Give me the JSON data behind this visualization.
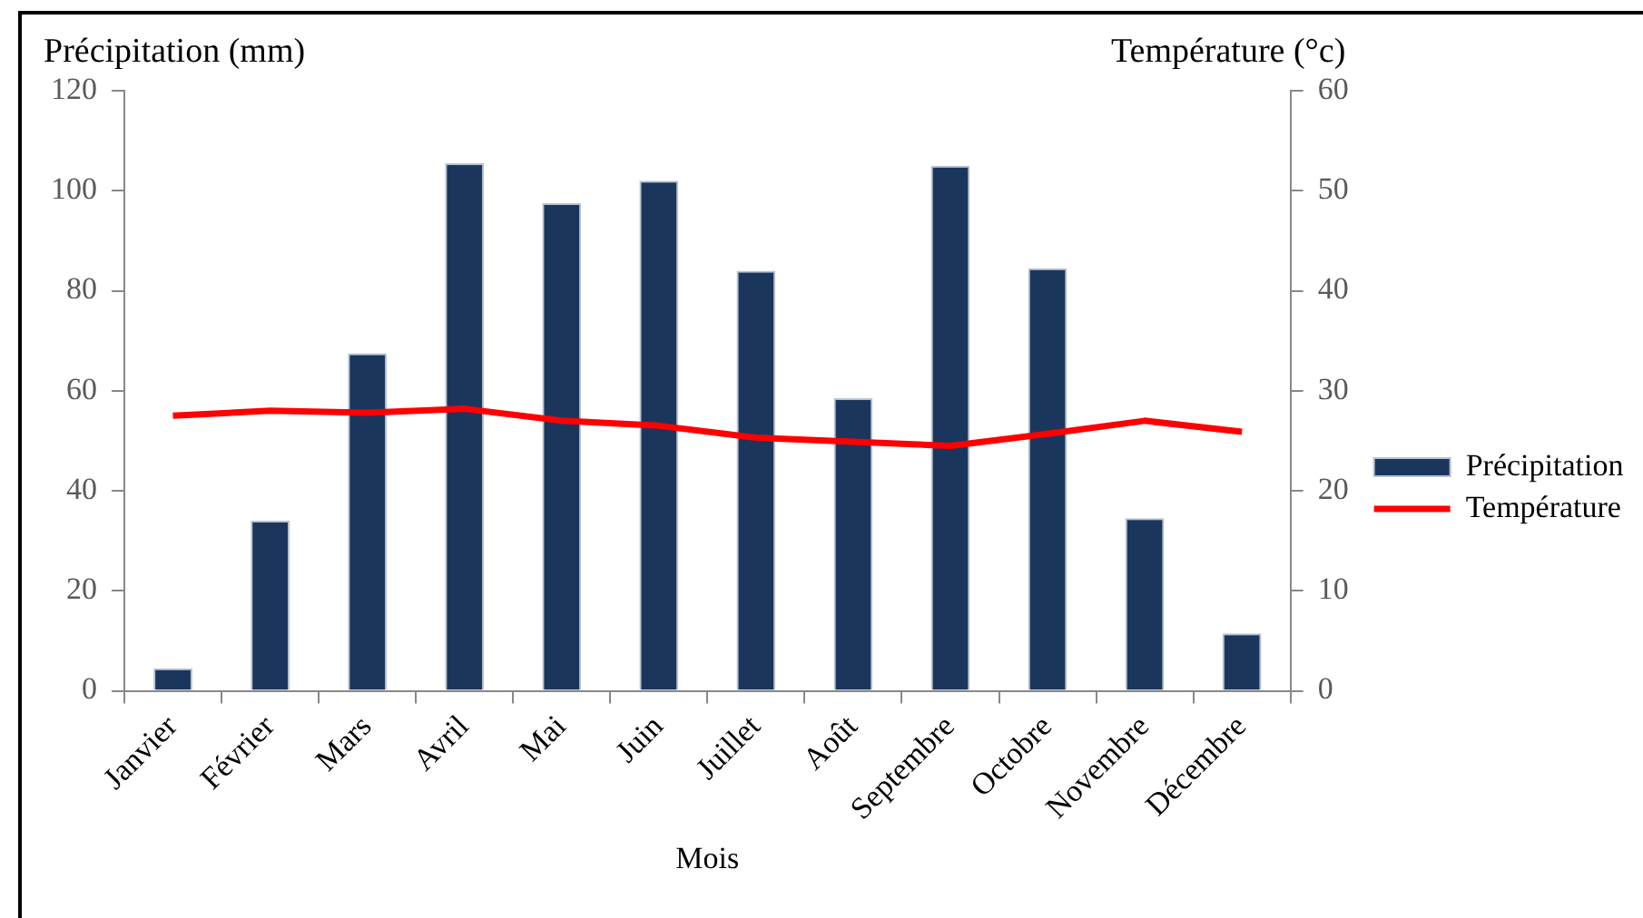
{
  "chart_data": {
    "type": "bar",
    "ylabel": "Précipitation (mm)",
    "y2label": "Température (°c)",
    "xlabel": "Mois",
    "categories": [
      "Janvier",
      "Février",
      "Mars",
      "Avril",
      "Mai",
      "Juin",
      "Juillet",
      "Août",
      "Septembre",
      "Octobre",
      "Novembre",
      "Décembre"
    ],
    "series": [
      {
        "name": "Précipitation",
        "color": "#1b365d",
        "values": [
          4.5,
          34,
          67.5,
          105.5,
          97.5,
          102,
          84,
          58.5,
          105,
          84.5,
          34.5,
          11.5
        ]
      },
      {
        "name": "Température",
        "type": "line",
        "axis": "y2",
        "color": "#ff0000",
        "values": [
          27.5,
          28,
          27.8,
          28.2,
          27,
          26.5,
          25.3,
          24.9,
          24.5,
          25.7,
          27,
          25.9
        ]
      }
    ],
    "ylim": [
      0,
      120
    ],
    "yticks": [
      0,
      20,
      40,
      60,
      80,
      100,
      120
    ],
    "y2lim": [
      0,
      60
    ],
    "y2ticks": [
      0,
      10,
      20,
      30,
      40,
      50,
      60
    ],
    "grid": false,
    "legend": "right",
    "marker": "none"
  }
}
